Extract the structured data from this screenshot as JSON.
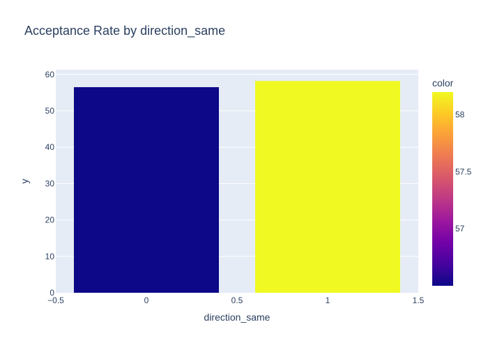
{
  "chart_data": {
    "type": "bar",
    "title": "Acceptance Rate by direction_same",
    "xlabel": "direction_same",
    "ylabel": "y",
    "x": [
      0,
      1
    ],
    "values": [
      56.5,
      58.2
    ],
    "color_values": [
      56.5,
      58.2
    ],
    "xlim": [
      -0.5,
      1.5
    ],
    "ylim": [
      0,
      61.3
    ],
    "xticks": [
      -0.5,
      0,
      0.5,
      1,
      1.5
    ],
    "xtick_labels": [
      "−0.5",
      "0",
      "0.5",
      "1",
      "1.5"
    ],
    "yticks": [
      0,
      10,
      20,
      30,
      40,
      50,
      60
    ],
    "ytick_labels": [
      "0",
      "10",
      "20",
      "30",
      "40",
      "50",
      "60"
    ],
    "grid": true,
    "colorbar": {
      "title": "color",
      "range": [
        56.5,
        58.2
      ],
      "ticks": [
        57,
        57.5,
        58
      ],
      "tick_labels": [
        "57",
        "57.5",
        "58"
      ],
      "colorscale": [
        "#0d0887",
        "#46039f",
        "#7201a8",
        "#9c179e",
        "#bd3786",
        "#d8576b",
        "#ed7953",
        "#fb9f3a",
        "#fdca26",
        "#f0f921"
      ]
    },
    "colors": {
      "plot_bg": "#e5ecf6",
      "grid": "#ffffff",
      "text": "#2a3f5f"
    }
  }
}
